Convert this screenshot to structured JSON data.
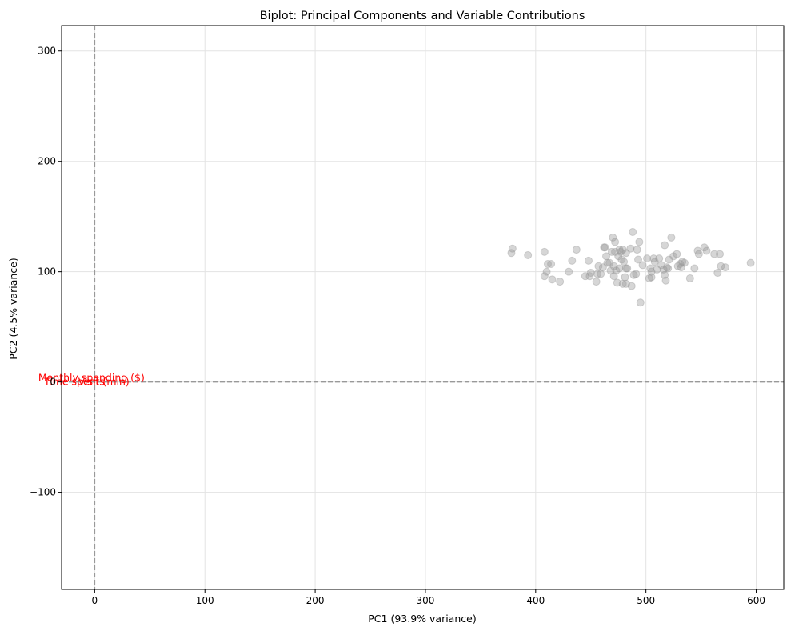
{
  "chart_data": {
    "type": "scatter",
    "title": "Biplot: Principal Components and Variable Contributions",
    "xlabel": "PC1 (93.9% variance)",
    "ylabel": "PC2 (4.5% variance)",
    "xlim": [
      -30,
      625
    ],
    "ylim": [
      -188,
      323
    ],
    "xticks": [
      0,
      100,
      200,
      300,
      400,
      500,
      600
    ],
    "xtick_labels": [
      "0",
      "100",
      "200",
      "300",
      "400",
      "500",
      "600"
    ],
    "yticks": [
      -100,
      0,
      100,
      200,
      300
    ],
    "ytick_labels": [
      "−100",
      "0",
      "100",
      "200",
      "300"
    ],
    "grid": true,
    "reference_lines": {
      "x": 0,
      "y": 0,
      "style": "dashed",
      "color": "#999999"
    },
    "point_color": "#999999",
    "point_opacity": 0.4,
    "loading_color": "#ff0000",
    "points": [
      [
        378,
        117
      ],
      [
        379,
        121
      ],
      [
        393,
        115
      ],
      [
        408,
        118
      ],
      [
        408,
        96
      ],
      [
        410,
        100
      ],
      [
        411,
        107
      ],
      [
        414,
        107
      ],
      [
        415,
        93
      ],
      [
        422,
        91
      ],
      [
        430,
        100
      ],
      [
        433,
        110
      ],
      [
        437,
        120
      ],
      [
        445,
        96
      ],
      [
        448,
        110
      ],
      [
        449,
        96
      ],
      [
        450,
        99
      ],
      [
        455,
        91
      ],
      [
        456,
        98
      ],
      [
        457,
        105
      ],
      [
        459,
        98
      ],
      [
        461,
        104
      ],
      [
        462,
        122
      ],
      [
        463,
        122
      ],
      [
        464,
        114
      ],
      [
        465,
        108
      ],
      [
        467,
        108
      ],
      [
        468,
        101
      ],
      [
        469,
        118
      ],
      [
        470,
        131
      ],
      [
        471,
        96
      ],
      [
        471,
        105
      ],
      [
        472,
        127
      ],
      [
        472,
        118
      ],
      [
        473,
        101
      ],
      [
        474,
        90
      ],
      [
        475,
        114
      ],
      [
        476,
        120
      ],
      [
        476,
        103
      ],
      [
        477,
        118
      ],
      [
        478,
        111
      ],
      [
        479,
        89
      ],
      [
        479,
        120
      ],
      [
        480,
        109
      ],
      [
        481,
        95
      ],
      [
        482,
        89
      ],
      [
        482,
        117
      ],
      [
        482,
        103
      ],
      [
        483,
        103
      ],
      [
        486,
        121
      ],
      [
        487,
        87
      ],
      [
        488,
        136
      ],
      [
        489,
        97
      ],
      [
        491,
        98
      ],
      [
        492,
        120
      ],
      [
        493,
        111
      ],
      [
        494,
        127
      ],
      [
        495,
        72
      ],
      [
        497,
        106
      ],
      [
        501,
        112
      ],
      [
        503,
        94
      ],
      [
        504,
        103
      ],
      [
        505,
        95
      ],
      [
        505,
        100
      ],
      [
        507,
        112
      ],
      [
        508,
        109
      ],
      [
        510,
        102
      ],
      [
        512,
        112
      ],
      [
        514,
        106
      ],
      [
        516,
        102
      ],
      [
        517,
        124
      ],
      [
        517,
        97
      ],
      [
        518,
        92
      ],
      [
        519,
        104
      ],
      [
        520,
        103
      ],
      [
        521,
        111
      ],
      [
        523,
        131
      ],
      [
        525,
        114
      ],
      [
        528,
        116
      ],
      [
        529,
        105
      ],
      [
        531,
        107
      ],
      [
        532,
        104
      ],
      [
        533,
        109
      ],
      [
        535,
        108
      ],
      [
        540,
        94
      ],
      [
        544,
        103
      ],
      [
        547,
        119
      ],
      [
        548,
        116
      ],
      [
        553,
        122
      ],
      [
        555,
        119
      ],
      [
        562,
        116
      ],
      [
        565,
        99
      ],
      [
        567,
        116
      ],
      [
        568,
        105
      ],
      [
        572,
        104
      ],
      [
        595,
        108
      ]
    ],
    "loadings": [
      {
        "label": "Monthly spending ($)",
        "x": 0,
        "y": 0
      },
      {
        "label": "Time spent (min)",
        "x": 0,
        "y": 0
      },
      {
        "label": "Visits",
        "x": 0,
        "y": 0
      }
    ]
  }
}
